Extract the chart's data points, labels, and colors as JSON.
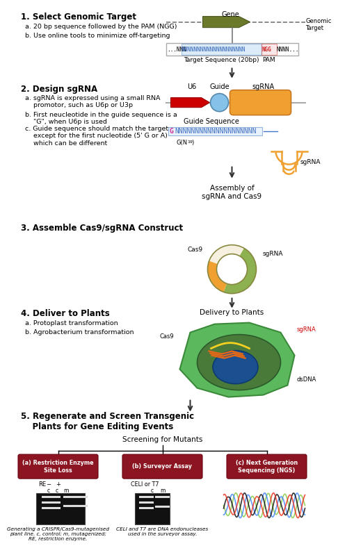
{
  "step1_title": "1. Select Genomic Target",
  "step1_a": "a. 20 bp sequence followed by the PAM (NGG)",
  "step1_b": "b. Use online tools to minimize off-targeting",
  "step2_title": "2. Design sgRNA",
  "step2_a": "a. sgRNA is expressed using a small RNA\n    promotor, such as U6p or U3p",
  "step2_b": "b. First neucleotide in the guide sequence is a\n    \"G\", when U6p is used",
  "step2_c": "c. Guide sequence should match the target\n    except for the first nucleotide (5' G or A)\n    which can be different",
  "step3_title": "3. Assemble Cas9/sgRNA Construct",
  "step4_title": "4. Deliver to Plants",
  "step4_a": "a. Protoplast transformation",
  "step4_b": "b. Agrobacterium transformation",
  "step5_title": "5. Regenerate and Screen Transgenic\n    Plants for Gene Editing Events",
  "screening_title": "Screening for Mutants",
  "box1_title": "(a) Restriction Enzyme\nSite Loss",
  "box2_title": "(b) Surveyor Assay",
  "box3_title": "(c) Next Generation\nSequencing (NGS)",
  "caption1": "Generating a CRISPR/Cas9-mutagenised\nplant line. c, control; m, mutagenized;\nRE, restriction enzyme.",
  "caption2": "CELI and T7 are DNA endonucleases\nused in the surveyor assay.",
  "gene_label": "Gene",
  "genomic_target_label": "Genomic\nTarget",
  "target_seq_label": "Target Sequence (20bp)",
  "pam_label": "PAM",
  "u6_label": "U6",
  "guide_label": "Guide",
  "sgrna_label": "sgRNA",
  "guide_seq_label": "Guide Sequence",
  "cas9_label": "Cas9",
  "sgrna_label_plasmid": "sgRNA",
  "assembly_label": "Assembly of\nsgRNA and Cas9",
  "delivery_label": "Delivery to Plants",
  "cas9_label2": "Cas9",
  "sgrna_label2": "sgRNA",
  "dsdna_label": "dsDNA",
  "re_label": "RE",
  "ceu_label": "CELI or T7",
  "arrow_color": "#333333",
  "gene_arrow_fc": "#6b7a2a",
  "gene_arrow_ec": "#4a5520",
  "u6_fc": "#cc0000",
  "guide_fc": "#85c1e9",
  "sgrna_fc": "#f0a030",
  "plasmid_outer_fc": "#f5f0e0",
  "plasmid_cas9_fc": "#8db050",
  "plasmid_sgrna_fc": "#f0a030",
  "leaf_fc": "#5cb85c",
  "cell_fc": "#4a7a3a",
  "nucleus_fc": "#1a5090",
  "box_fc": "#8b1520",
  "box_ec": "#6b0010",
  "gel_fc": "#111111",
  "seq_highlight_blue": "#b8d8f0",
  "seq_highlight_red": "#f8d0d0",
  "guide_seq_blue": "#4472c4",
  "guide_g_color": "#cc3399",
  "sgrna_struct_color": "#f0a030"
}
